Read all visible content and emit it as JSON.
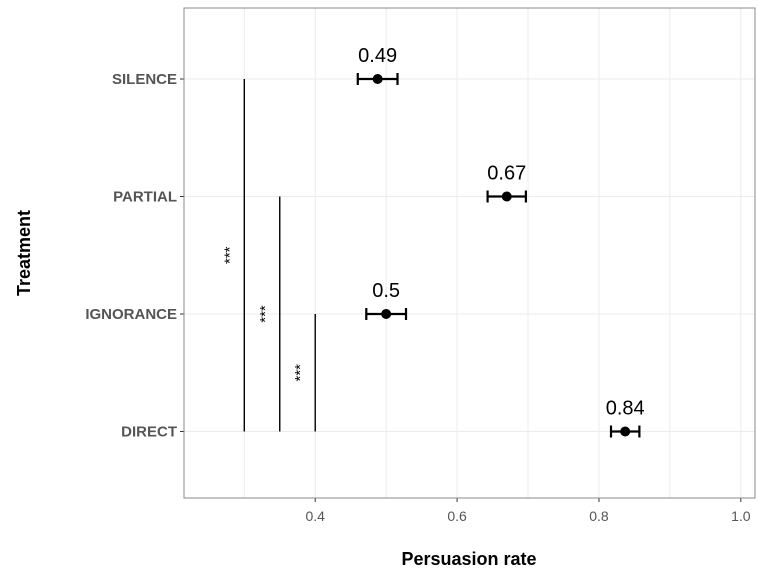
{
  "chart_data": {
    "type": "scatter",
    "ylabel": "Treatment",
    "xlabel": "Persuasion rate",
    "xlim": [
      0.215,
      1.02
    ],
    "x_ticks": [
      "0.4",
      "0.6",
      "0.8",
      "1.0"
    ],
    "x_tick_values": [
      0.4,
      0.6,
      0.8,
      1.0
    ],
    "grid": true,
    "categories": [
      "SILENCE",
      "PARTIAL",
      "IGNORANCE",
      "DIRECT"
    ],
    "points": [
      {
        "category": "SILENCE",
        "value": 0.488,
        "ci_low": 0.46,
        "ci_high": 0.516,
        "label": "0.49"
      },
      {
        "category": "PARTIAL",
        "value": 0.67,
        "ci_low": 0.643,
        "ci_high": 0.697,
        "label": "0.67"
      },
      {
        "category": "IGNORANCE",
        "value": 0.5,
        "ci_low": 0.472,
        "ci_high": 0.528,
        "label": "0.5"
      },
      {
        "category": "DIRECT",
        "value": 0.837,
        "ci_low": 0.817,
        "ci_high": 0.857,
        "label": "0.84"
      }
    ],
    "significance": [
      {
        "from": "SILENCE",
        "to": "DIRECT",
        "x": 0.3,
        "label": "***"
      },
      {
        "from": "PARTIAL",
        "to": "DIRECT",
        "x": 0.35,
        "label": "***"
      },
      {
        "from": "IGNORANCE",
        "to": "DIRECT",
        "x": 0.4,
        "label": "***"
      }
    ]
  }
}
